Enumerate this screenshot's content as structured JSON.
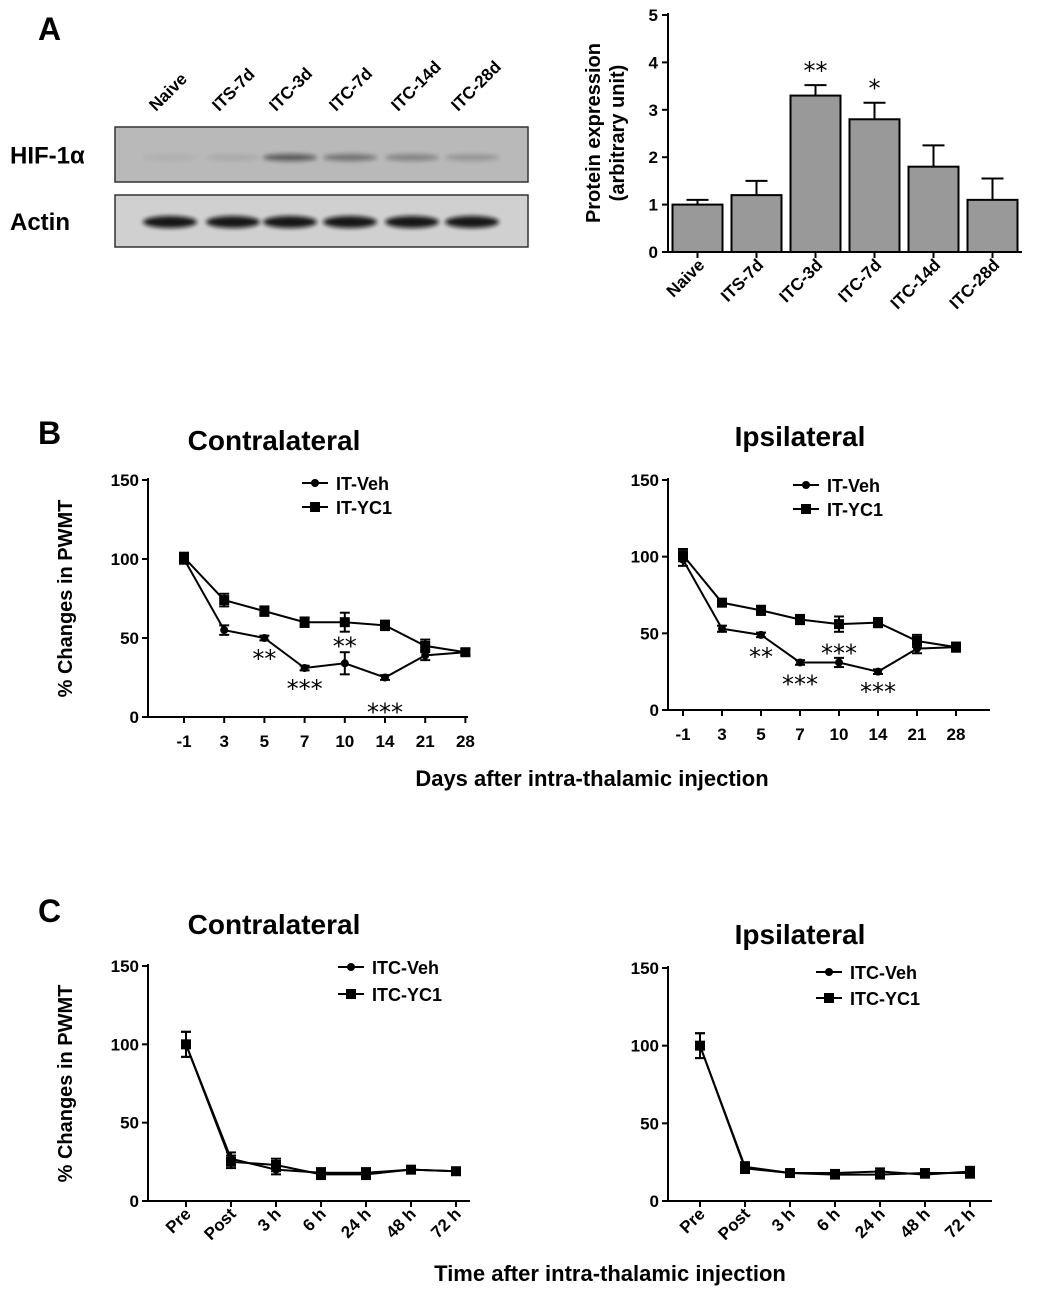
{
  "panel_labels": {
    "a": "A",
    "b": "B",
    "c": "C"
  },
  "blot": {
    "lanes": [
      "Naive",
      "ITS-7d",
      "ITC-3d",
      "ITC-7d",
      "ITC-14d",
      "ITC-28d"
    ],
    "rows": [
      {
        "label": "HIF-1α",
        "intensity": [
          0.05,
          0.08,
          0.55,
          0.4,
          0.3,
          0.2
        ]
      },
      {
        "label": "Actin",
        "intensity": [
          0.95,
          0.95,
          0.95,
          0.95,
          0.95,
          0.95
        ]
      }
    ]
  },
  "chart_data": [
    {
      "id": "protein",
      "type": "bar",
      "ylabel": "Protein expression",
      "ylabel2": "(arbitrary unit)",
      "categories": [
        "Naive",
        "ITS-7d",
        "ITC-3d",
        "ITC-7d",
        "ITC-14d",
        "ITC-28d"
      ],
      "values": [
        1.0,
        1.2,
        3.3,
        2.8,
        1.8,
        1.1
      ],
      "errors": [
        0.1,
        0.3,
        0.22,
        0.35,
        0.45,
        0.45
      ],
      "significance": [
        "",
        "",
        "**",
        "*",
        "",
        ""
      ],
      "ylim": [
        0,
        5
      ],
      "yticks": [
        0,
        1,
        2,
        3,
        4,
        5
      ],
      "bar_color": "#999999"
    },
    {
      "id": "b-contra",
      "type": "line",
      "title": "Contralateral",
      "ylabel": "% Changes in PWMT",
      "ylim": [
        0,
        150
      ],
      "yticks": [
        0,
        50,
        100,
        150
      ],
      "categories": [
        "-1",
        "3",
        "5",
        "7",
        "10",
        "14",
        "21",
        "28"
      ],
      "series": [
        {
          "name": "IT-Veh",
          "marker": "circle",
          "values": [
            100,
            55,
            50,
            31,
            34,
            25,
            39,
            41
          ],
          "errors": [
            3,
            3,
            1.5,
            1.5,
            7,
            1.5,
            3,
            2
          ]
        },
        {
          "name": "IT-YC1",
          "marker": "square",
          "values": [
            101,
            74,
            67,
            60,
            60,
            58,
            45,
            41
          ],
          "errors": [
            3,
            4,
            3,
            3,
            6,
            3,
            4,
            2
          ]
        }
      ],
      "annotations": [
        {
          "cat_index": 2,
          "text": "**",
          "y": 38
        },
        {
          "cat_index": 3,
          "text": "***",
          "y": 19
        },
        {
          "cat_index": 4,
          "text": "**",
          "y": 46
        },
        {
          "cat_index": 5,
          "text": "***",
          "y": 4
        }
      ]
    },
    {
      "id": "b-ipsi",
      "type": "line",
      "title": "Ipsilateral",
      "ylim": [
        0,
        150
      ],
      "yticks": [
        0,
        50,
        100,
        150
      ],
      "categories": [
        "-1",
        "3",
        "5",
        "7",
        "10",
        "14",
        "21",
        "28"
      ],
      "series": [
        {
          "name": "IT-Veh",
          "marker": "circle",
          "values": [
            98,
            53,
            49,
            31,
            31,
            25,
            40,
            41
          ],
          "errors": [
            4,
            2,
            1.5,
            1.5,
            3,
            1.5,
            3,
            2
          ]
        },
        {
          "name": "IT-YC1",
          "marker": "square",
          "values": [
            101,
            70,
            65,
            59,
            56,
            57,
            45,
            41
          ],
          "errors": [
            4,
            2,
            3,
            3,
            5,
            3,
            4,
            3
          ]
        }
      ],
      "annotations": [
        {
          "cat_index": 2,
          "text": "**",
          "y": 36
        },
        {
          "cat_index": 3,
          "text": "***",
          "y": 18
        },
        {
          "cat_index": 4,
          "text": "***",
          "y": 38
        },
        {
          "cat_index": 5,
          "text": "***",
          "y": 13
        }
      ]
    },
    {
      "id": "c-contra",
      "type": "line",
      "title": "Contralateral",
      "ylabel": "% Changes in PWMT",
      "ylim": [
        0,
        150
      ],
      "yticks": [
        0,
        50,
        100,
        150
      ],
      "categories": [
        "Pre",
        "Post",
        "3 h",
        "6 h",
        "24 h",
        "48 h",
        "72 h"
      ],
      "series": [
        {
          "name": "ITC-Veh",
          "marker": "circle",
          "values": [
            100,
            27,
            20,
            18,
            18,
            20,
            19
          ],
          "errors": [
            8,
            4,
            3,
            3,
            3,
            2,
            2
          ]
        },
        {
          "name": "ITC-YC1",
          "marker": "square",
          "values": [
            100,
            25,
            23,
            17,
            17,
            20,
            19
          ],
          "errors": [
            8,
            4,
            4,
            3,
            3,
            2,
            2
          ]
        }
      ]
    },
    {
      "id": "c-ipsi",
      "type": "line",
      "title": "Ipsilateral",
      "ylim": [
        0,
        150
      ],
      "yticks": [
        0,
        50,
        100,
        150
      ],
      "categories": [
        "Pre",
        "Post",
        "3 h",
        "6 h",
        "24 h",
        "48 h",
        "72 h"
      ],
      "series": [
        {
          "name": "ITC-Veh",
          "marker": "circle",
          "values": [
            100,
            22,
            18,
            18,
            19,
            17,
            19
          ],
          "errors": [
            8,
            3,
            2,
            2,
            2,
            2,
            3
          ]
        },
        {
          "name": "ITC-YC1",
          "marker": "square",
          "values": [
            100,
            21,
            18,
            17,
            17,
            18,
            18
          ],
          "errors": [
            8,
            3,
            2,
            2,
            2,
            2,
            3
          ]
        }
      ]
    }
  ],
  "xlabels": {
    "b": "Days after intra-thalamic injection",
    "c": "Time after intra-thalamic injection"
  }
}
